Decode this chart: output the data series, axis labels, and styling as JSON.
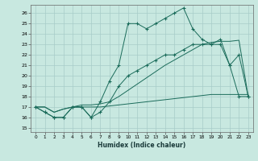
{
  "xlabel": "Humidex (Indice chaleur)",
  "bg_color": "#c8e8e0",
  "grid_color": "#a8ccc8",
  "line_color": "#1a6b5a",
  "xlim": [
    -0.5,
    23.5
  ],
  "ylim": [
    14.6,
    26.8
  ],
  "xticks": [
    0,
    1,
    2,
    3,
    4,
    5,
    6,
    7,
    8,
    9,
    10,
    11,
    12,
    13,
    14,
    15,
    16,
    17,
    18,
    19,
    20,
    21,
    22,
    23
  ],
  "yticks": [
    15,
    16,
    17,
    18,
    19,
    20,
    21,
    22,
    23,
    24,
    25,
    26
  ],
  "line1_y": [
    17,
    16.5,
    16,
    16,
    17,
    17,
    16,
    17.5,
    19.5,
    21,
    25,
    25,
    24.5,
    25,
    25.5,
    26,
    26.5,
    24.5,
    23.5,
    23,
    23,
    21,
    22,
    18
  ],
  "line2_y": [
    17,
    16.5,
    16,
    16,
    17,
    17,
    16,
    16.5,
    17.5,
    19,
    20,
    20.5,
    21,
    21.5,
    22,
    22,
    22.5,
    23,
    23,
    23,
    23.5,
    21,
    18,
    18
  ],
  "line3_y": [
    17,
    17,
    16.5,
    16.8,
    17,
    17,
    17,
    17,
    17.1,
    17.2,
    17.3,
    17.4,
    17.5,
    17.6,
    17.7,
    17.8,
    17.9,
    18.0,
    18.1,
    18.2,
    18.2,
    18.2,
    18.2,
    18.2
  ],
  "line4_y": [
    17,
    17,
    16.5,
    16.8,
    17,
    17.2,
    17.2,
    17.3,
    17.5,
    18.0,
    18.6,
    19.2,
    19.8,
    20.4,
    21.0,
    21.5,
    22.0,
    22.5,
    23.0,
    23.2,
    23.3,
    23.3,
    23.4,
    18.0
  ]
}
